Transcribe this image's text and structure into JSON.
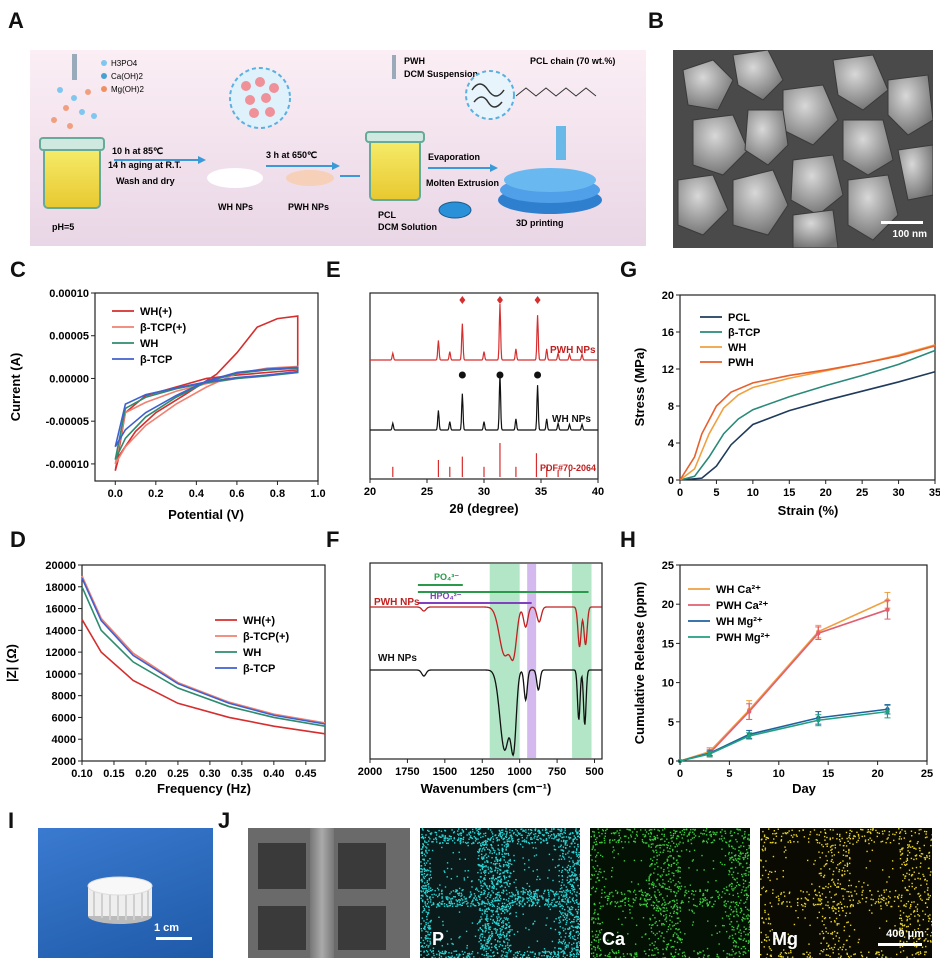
{
  "panels": {
    "A": "A",
    "B": "B",
    "C": "C",
    "D": "D",
    "E": "E",
    "F": "F",
    "G": "G",
    "H": "H",
    "I": "I",
    "J": "J"
  },
  "schematic": {
    "reagents": [
      "H3PO4",
      "Ca(OH)2",
      "Mg(OH)2"
    ],
    "step1": [
      "10 h at 85℃",
      "14 h aging at R.T.",
      "Wash and dry"
    ],
    "ph": "pH=5",
    "wh_nps": "WH NPs",
    "step2": "3 h at 650℃",
    "pwh_nps": "PWH NPs",
    "pwh_dcm": [
      "PWH",
      "DCM Suspension"
    ],
    "pcl_dcm": [
      "PCL",
      "DCM Solution"
    ],
    "process": [
      "Evaporation",
      "Molten Extrusion"
    ],
    "printing": "3D printing",
    "pcl_chain": "PCL chain (70 wt.%)"
  },
  "sem": {
    "scalebar": "100 nm"
  },
  "photo_i": {
    "scalebar": "1 cm"
  },
  "eds": {
    "maps": [
      "P",
      "Ca",
      "Mg"
    ],
    "scalebar": "400 μm"
  },
  "colors": {
    "red": "#d62e2e",
    "salmon": "#f08070",
    "green": "#2e8b6e",
    "blue": "#4060d0",
    "navy": "#1f3b5c",
    "teal": "#2a8a7a",
    "orange": "#f0a040",
    "pwh": "#e8602c"
  },
  "chart_data": [
    {
      "id": "C",
      "type": "line",
      "xlabel": "Potential (V)",
      "ylabel": "Current (A)",
      "xlim": [
        -0.1,
        1.0
      ],
      "ylim": [
        -0.00012,
        0.0001
      ],
      "xticks": [
        "0.0",
        "0.2",
        "0.4",
        "0.6",
        "0.8",
        "1.0"
      ],
      "yticks": [
        "-0.00010",
        "-0.00005",
        "0.00000",
        "0.00005",
        "0.00010"
      ],
      "legend": [
        "WH(+)",
        "β-TCP(+)",
        "WH",
        "β-TCP"
      ],
      "series": [
        {
          "name": "WH(+)",
          "color": "#d62e2e",
          "x": [
            0,
            0.02,
            0.1,
            0.2,
            0.35,
            0.5,
            0.6,
            0.7,
            0.8,
            0.9,
            0.9,
            0.8,
            0.6,
            0.45,
            0.3,
            0.15,
            0.05,
            0
          ],
          "y": [
            -0.000108,
            -9e-05,
            -6.2e-05,
            -4e-05,
            -1.8e-05,
            5e-06,
            3e-05,
            6e-05,
            7e-05,
            7.3e-05,
            1e-05,
            8e-06,
            4e-06,
            0,
            -1e-05,
            -2e-05,
            -4e-05,
            -0.000108
          ]
        },
        {
          "name": "β-TCP(+)",
          "color": "#f08070",
          "x": [
            0,
            0.05,
            0.15,
            0.3,
            0.45,
            0.6,
            0.75,
            0.9,
            0.9,
            0.75,
            0.6,
            0.45,
            0.3,
            0.15,
            0.05,
            0
          ],
          "y": [
            -0.0001,
            -8e-05,
            -5.5e-05,
            -3e-05,
            -1e-05,
            6e-06,
            1.2e-05,
            1.4e-05,
            8e-06,
            4e-06,
            0,
            -6e-06,
            -1.5e-05,
            -2.8e-05,
            -4e-05,
            -0.0001
          ]
        },
        {
          "name": "WH",
          "color": "#2e8b6e",
          "x": [
            0,
            0.05,
            0.15,
            0.3,
            0.45,
            0.6,
            0.75,
            0.9,
            0.9,
            0.75,
            0.6,
            0.45,
            0.3,
            0.15,
            0.05,
            0
          ],
          "y": [
            -9.5e-05,
            -7e-05,
            -4.5e-05,
            -2.2e-05,
            -4e-06,
            6e-06,
            1e-05,
            1.2e-05,
            7e-06,
            3e-06,
            0,
            -5e-06,
            -1.2e-05,
            -2.2e-05,
            -3.5e-05,
            -9.5e-05
          ]
        },
        {
          "name": "β-TCP",
          "color": "#4060d0",
          "x": [
            0,
            0.05,
            0.15,
            0.3,
            0.45,
            0.6,
            0.75,
            0.9,
            0.9,
            0.75,
            0.6,
            0.45,
            0.3,
            0.15,
            0.05,
            0
          ],
          "y": [
            -8e-05,
            -6e-05,
            -4e-05,
            -2e-05,
            -3e-06,
            7e-06,
            1.1e-05,
            1.3e-05,
            8e-06,
            4e-06,
            1e-06,
            -4e-06,
            -1.1e-05,
            -1.9e-05,
            -3e-05,
            -8e-05
          ]
        }
      ]
    },
    {
      "id": "D",
      "type": "line",
      "xlabel": "Frequency (Hz)",
      "ylabel": "|Z| (Ω)",
      "xlim": [
        0.1,
        0.48
      ],
      "ylim": [
        2000,
        20000
      ],
      "xticks": [
        "0.10",
        "0.15",
        "0.20",
        "0.25",
        "0.30",
        "0.35",
        "0.40",
        "0.45"
      ],
      "yticks": [
        "2000",
        "4000",
        "6000",
        "8000",
        "10000",
        "12000",
        "14000",
        "16000",
        "18000",
        "20000"
      ],
      "legend": [
        "WH(+)",
        "β-TCP(+)",
        "WH",
        "β-TCP"
      ],
      "series": [
        {
          "name": "WH(+)",
          "color": "#d62e2e",
          "x": [
            0.1,
            0.13,
            0.18,
            0.25,
            0.33,
            0.4,
            0.48
          ],
          "y": [
            15000,
            12000,
            9400,
            7300,
            6000,
            5200,
            4500
          ]
        },
        {
          "name": "β-TCP(+)",
          "color": "#f08070",
          "x": [
            0.1,
            0.13,
            0.18,
            0.25,
            0.33,
            0.4,
            0.48
          ],
          "y": [
            19000,
            15100,
            11900,
            9200,
            7400,
            6300,
            5500
          ]
        },
        {
          "name": "WH",
          "color": "#2e8b6e",
          "x": [
            0.1,
            0.13,
            0.18,
            0.25,
            0.33,
            0.4,
            0.48
          ],
          "y": [
            18000,
            14000,
            11100,
            8700,
            7000,
            6000,
            5200
          ]
        },
        {
          "name": "β-TCP",
          "color": "#4060d0",
          "x": [
            0.1,
            0.13,
            0.18,
            0.25,
            0.33,
            0.4,
            0.48
          ],
          "y": [
            18800,
            14900,
            11700,
            9100,
            7300,
            6200,
            5400
          ]
        }
      ]
    },
    {
      "id": "E",
      "type": "line",
      "xlabel": "2θ (degree)",
      "xlim": [
        20,
        40
      ],
      "xticks": [
        "20",
        "25",
        "30",
        "35",
        "40"
      ],
      "labels": [
        "PWH NPs",
        "WH NPs",
        "PDF#70-2064"
      ],
      "peaks": [
        22,
        26,
        27,
        28.1,
        30,
        31.4,
        32.8,
        34.7,
        35.5,
        36.5,
        37.5,
        38.6
      ],
      "peak_heights": [
        0.12,
        0.35,
        0.15,
        0.65,
        0.15,
        1.0,
        0.2,
        0.8,
        0.2,
        0.12,
        0.1,
        0.1
      ],
      "ref_lines": [
        22,
        26,
        27,
        28.1,
        30,
        31.4,
        32.8,
        34.6,
        35.5,
        36.5,
        37.5
      ],
      "ref_heights": [
        0.3,
        0.5,
        0.3,
        0.6,
        0.3,
        1.0,
        0.3,
        0.7,
        0.3,
        0.2,
        0.2
      ]
    },
    {
      "id": "F",
      "type": "line",
      "xlabel": "Wavenumbers (cm⁻¹)",
      "xlim": [
        2000,
        450
      ],
      "xticks": [
        "2000",
        "1750",
        "1500",
        "1250",
        "1000",
        "750",
        "500"
      ],
      "labels": [
        "PWH NPs",
        "WH NPs"
      ],
      "bands": [
        "PO₄³⁻",
        "HPO₄²⁻"
      ]
    },
    {
      "id": "G",
      "type": "line",
      "xlabel": "Strain (%)",
      "ylabel": "Stress (MPa)",
      "xlim": [
        0,
        35
      ],
      "ylim": [
        0,
        20
      ],
      "xticks": [
        "0",
        "5",
        "10",
        "15",
        "20",
        "25",
        "30",
        "35"
      ],
      "yticks": [
        "0",
        "4",
        "8",
        "12",
        "16",
        "20"
      ],
      "legend": [
        "PCL",
        "β-TCP",
        "WH",
        "PWH"
      ],
      "series": [
        {
          "name": "PCL",
          "color": "#1f3b5c",
          "x": [
            0,
            3,
            5,
            7,
            10,
            15,
            20,
            25,
            30,
            35
          ],
          "y": [
            0,
            0.2,
            1.5,
            3.8,
            6,
            7.5,
            8.6,
            9.6,
            10.6,
            11.7
          ]
        },
        {
          "name": "β-TCP",
          "color": "#2a8a7a",
          "x": [
            0,
            2,
            4,
            6,
            8,
            10,
            15,
            20,
            25,
            30,
            35
          ],
          "y": [
            0,
            0.4,
            2.5,
            5,
            6.6,
            7.6,
            9,
            10.2,
            11.3,
            12.5,
            14
          ]
        },
        {
          "name": "WH",
          "color": "#f0a040",
          "x": [
            0,
            2,
            4,
            6,
            8,
            10,
            15,
            20,
            25,
            30,
            35
          ],
          "y": [
            0,
            1.2,
            5,
            7.8,
            9.2,
            10,
            11,
            11.8,
            12.6,
            13.5,
            14.6
          ]
        },
        {
          "name": "PWH",
          "color": "#e8602c",
          "x": [
            0,
            2,
            3,
            5,
            7,
            10,
            15,
            20,
            25,
            30,
            35
          ],
          "y": [
            0,
            2.5,
            5,
            8,
            9.5,
            10.5,
            11.3,
            11.9,
            12.6,
            13.4,
            14.5
          ]
        }
      ]
    },
    {
      "id": "H",
      "type": "line",
      "xlabel": "Day",
      "ylabel": "Cumulative Release (ppm)",
      "xlim": [
        0,
        25
      ],
      "ylim": [
        0,
        25
      ],
      "xticks": [
        "0",
        "5",
        "10",
        "15",
        "20",
        "25"
      ],
      "yticks": [
        "0",
        "5",
        "10",
        "15",
        "20",
        "25"
      ],
      "legend": [
        "WH  Ca²⁺",
        "PWH  Ca²⁺",
        "WH  Mg²⁺",
        "PWH  Mg²⁺"
      ],
      "series": [
        {
          "name": "WH  Ca²⁺",
          "color": "#f0a040",
          "x": [
            0,
            3,
            7,
            14,
            21
          ],
          "y": [
            0,
            1.2,
            6.5,
            16.5,
            20.5
          ],
          "err": [
            0,
            0.5,
            1.2,
            0.8,
            1.0
          ]
        },
        {
          "name": "PWH  Ca²⁺",
          "color": "#e06070",
          "x": [
            0,
            3,
            7,
            14,
            21
          ],
          "y": [
            0,
            1.0,
            6.3,
            16.3,
            19.3
          ],
          "err": [
            0,
            0.5,
            1.0,
            0.8,
            1.2
          ]
        },
        {
          "name": "WH  Mg²⁺",
          "color": "#2060a0",
          "x": [
            0,
            3,
            7,
            14,
            21
          ],
          "y": [
            0,
            1.0,
            3.4,
            5.5,
            6.6
          ],
          "err": [
            0,
            0.3,
            0.5,
            0.8,
            0.6
          ]
        },
        {
          "name": "PWH  Mg²⁺",
          "color": "#20a080",
          "x": [
            0,
            3,
            7,
            14,
            21
          ],
          "y": [
            0,
            0.9,
            3.2,
            5.2,
            6.3
          ],
          "err": [
            0,
            0.3,
            0.4,
            0.7,
            0.8
          ]
        }
      ]
    }
  ]
}
